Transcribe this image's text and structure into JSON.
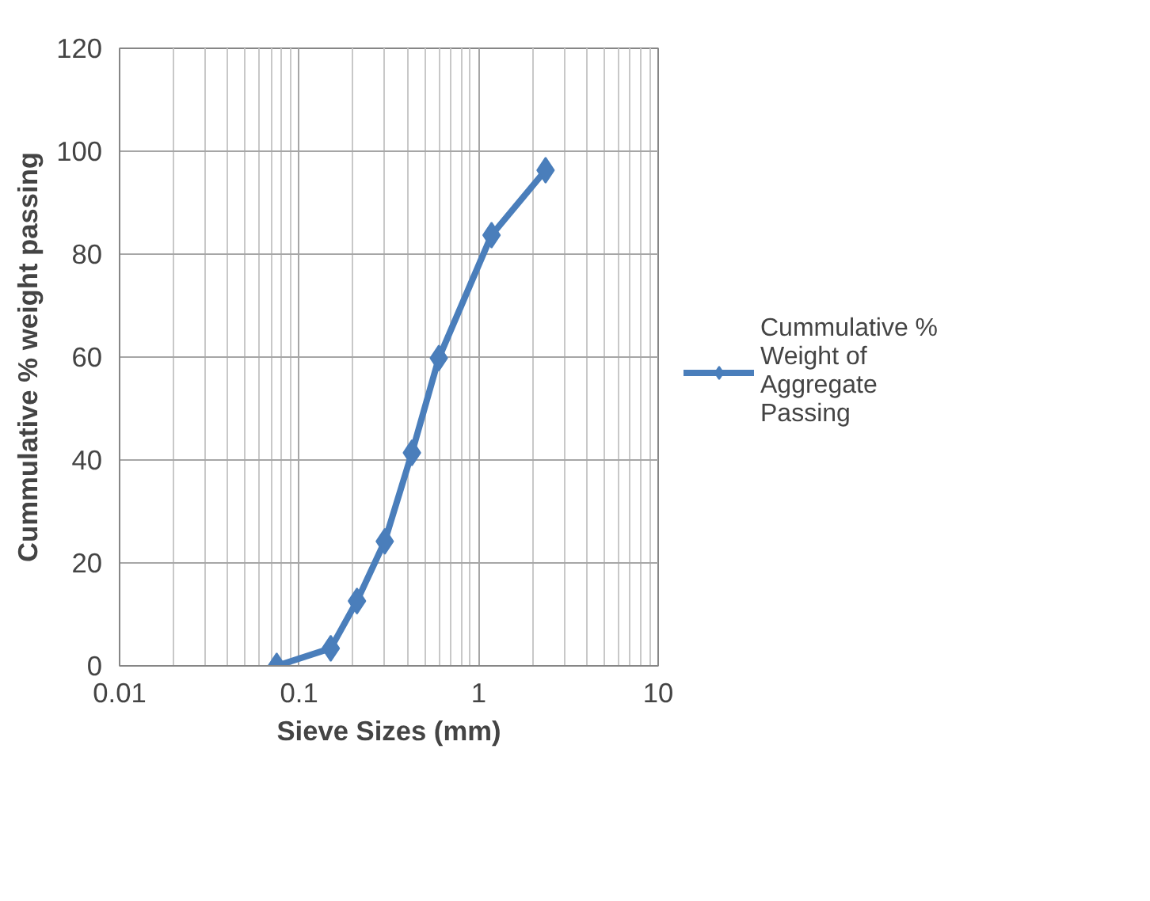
{
  "chart_data": {
    "type": "line",
    "xlabel": "Sieve Sizes (mm)",
    "ylabel": "Cummulative % weight passing",
    "log": "x",
    "xlim": [
      0.01,
      10
    ],
    "xticks": [
      0.01,
      0.1,
      1,
      10
    ],
    "ylim": [
      0,
      120
    ],
    "yticks": [
      0,
      20,
      40,
      60,
      80,
      100,
      120
    ],
    "grid": true,
    "legend": "right",
    "marker": "diamond",
    "line_style": "solid",
    "series": [
      {
        "name": "Cummulative % Weight of Aggregate Passing",
        "color": "#4a7ebb",
        "x": [
          0.075,
          0.15,
          0.21,
          0.3,
          0.425,
          0.6,
          1.18,
          2.36
        ],
        "values": [
          0,
          3.4,
          12.6,
          24.2,
          41.4,
          59.8,
          83.7,
          96.3
        ]
      }
    ]
  }
}
